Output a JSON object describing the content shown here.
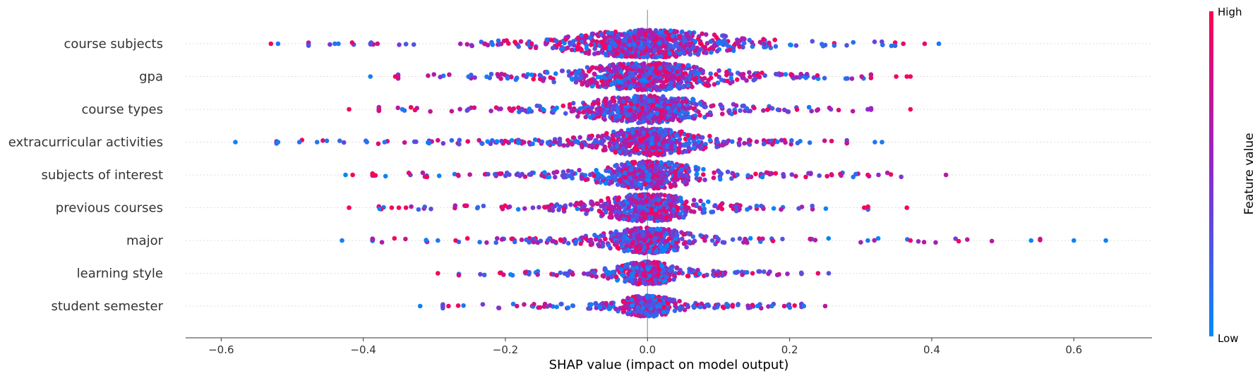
{
  "chart_data": {
    "type": "scatter",
    "subtype": "shap-beeswarm",
    "xlabel": "SHAP value (impact on model output)",
    "xlim": [
      -0.65,
      0.71
    ],
    "xticks": [
      -0.6,
      -0.4,
      -0.2,
      0.0,
      0.2,
      0.4,
      0.6
    ],
    "xtick_labels": [
      "−0.6",
      "−0.4",
      "−0.2",
      "0.0",
      "0.2",
      "0.4",
      "0.6"
    ],
    "grid": false,
    "colorbar": {
      "title": "Feature value",
      "high_label": "High",
      "low_label": "Low",
      "high_color": "#ff0052",
      "mid_color": "#8b2ad0",
      "low_color": "#008bfb"
    },
    "features": [
      {
        "name": "course subjects",
        "range": [
          -0.53,
          0.41
        ],
        "core_width": 0.11,
        "spread_width": 0.28,
        "density": 1.6,
        "outliers": [
          [
            -0.53,
            0.95
          ],
          [
            -0.52,
            0.1
          ],
          [
            -0.44,
            0.1
          ],
          [
            -0.435,
            0.1
          ],
          [
            -0.39,
            0.3
          ],
          [
            -0.38,
            0.8
          ],
          [
            0.36,
            0.9
          ],
          [
            0.39,
            0.9
          ],
          [
            0.41,
            0.1
          ]
        ]
      },
      {
        "name": "gpa",
        "range": [
          -0.39,
          0.37
        ],
        "core_width": 0.1,
        "spread_width": 0.25,
        "density": 1.4,
        "outliers": [
          [
            -0.39,
            0.05
          ],
          [
            -0.355,
            0.95
          ],
          [
            0.35,
            0.95
          ],
          [
            0.365,
            0.95
          ],
          [
            0.37,
            0.95
          ]
        ]
      },
      {
        "name": "course types",
        "range": [
          -0.42,
          0.37
        ],
        "core_width": 0.09,
        "spread_width": 0.24,
        "density": 1.3,
        "outliers": [
          [
            -0.42,
            0.95
          ],
          [
            -0.345,
            0.1
          ],
          [
            0.31,
            0.5
          ],
          [
            0.37,
            0.95
          ]
        ]
      },
      {
        "name": "extracurricular activities",
        "range": [
          -0.58,
          0.33
        ],
        "core_width": 0.07,
        "spread_width": 0.3,
        "density": 1.3,
        "outliers": [
          [
            -0.58,
            0.05
          ],
          [
            -0.52,
            0.05
          ],
          [
            -0.49,
            0.1
          ],
          [
            -0.465,
            0.1
          ],
          [
            -0.395,
            0.1
          ],
          [
            -0.37,
            0.1
          ],
          [
            0.32,
            0.1
          ],
          [
            0.33,
            0.1
          ]
        ]
      },
      {
        "name": "subjects of interest",
        "range": [
          -0.43,
          0.42
        ],
        "core_width": 0.07,
        "spread_width": 0.28,
        "density": 1.2,
        "outliers": [
          [
            -0.425,
            0.05
          ],
          [
            -0.415,
            0.95
          ],
          [
            0.31,
            0.95
          ],
          [
            0.325,
            0.5
          ],
          [
            0.42,
            0.7
          ]
        ]
      },
      {
        "name": "previous courses",
        "range": [
          -0.42,
          0.365
        ],
        "core_width": 0.07,
        "spread_width": 0.25,
        "density": 1.1,
        "outliers": [
          [
            -0.42,
            0.95
          ],
          [
            -0.36,
            0.95
          ],
          [
            -0.35,
            0.95
          ],
          [
            -0.34,
            0.95
          ],
          [
            0.305,
            0.95
          ],
          [
            0.365,
            0.95
          ]
        ]
      },
      {
        "name": "major",
        "range": [
          -0.43,
          0.65
        ],
        "core_width": 0.06,
        "spread_width": 0.26,
        "density": 1.0,
        "outliers": [
          [
            -0.43,
            0.05
          ],
          [
            -0.295,
            0.1
          ],
          [
            -0.27,
            0.95
          ],
          [
            0.31,
            0.1
          ],
          [
            0.37,
            0.95
          ],
          [
            0.6,
            0.05
          ],
          [
            0.645,
            0.05
          ]
        ]
      },
      {
        "name": "learning style",
        "range": [
          -0.295,
          0.255
        ],
        "core_width": 0.045,
        "spread_width": 0.2,
        "density": 0.9,
        "outliers": [
          [
            -0.295,
            0.95
          ],
          [
            0.24,
            0.9
          ],
          [
            0.255,
            0.3
          ]
        ]
      },
      {
        "name": "student semester",
        "range": [
          -0.32,
          0.255
        ],
        "core_width": 0.04,
        "spread_width": 0.2,
        "density": 0.8,
        "outliers": [
          [
            -0.32,
            0.05
          ],
          [
            -0.28,
            0.95
          ],
          [
            0.175,
            0.1
          ],
          [
            0.22,
            0.1
          ],
          [
            0.25,
            0.7
          ]
        ]
      }
    ]
  }
}
